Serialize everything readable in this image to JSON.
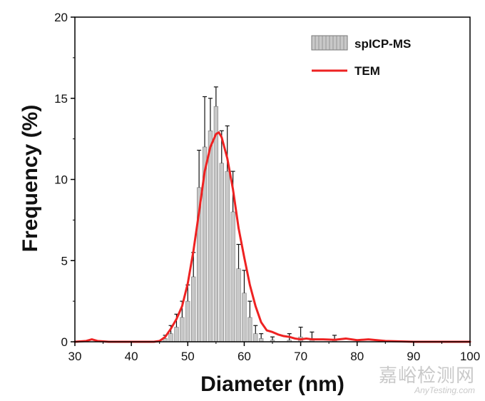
{
  "chart_data": {
    "type": "bar",
    "title": "",
    "xlabel": "Diameter (nm)",
    "ylabel": "Frequency (%)",
    "xlim": [
      30,
      100
    ],
    "ylim": [
      0,
      20
    ],
    "xticks": [
      30,
      40,
      50,
      60,
      70,
      80,
      90,
      100
    ],
    "yticks": [
      0,
      5,
      10,
      15,
      20
    ],
    "legend_position": "top-right",
    "series": [
      {
        "name": "spICP-MS",
        "type": "bar",
        "color": "#c8c8c8",
        "edge_color": "#777777",
        "x": [
          46,
          47,
          48,
          49,
          50,
          51,
          52,
          53,
          54,
          55,
          56,
          57,
          58,
          59,
          60,
          61,
          62,
          63,
          65,
          68,
          70,
          72,
          76
        ],
        "values": [
          0.2,
          0.5,
          0.9,
          1.5,
          2.5,
          4.0,
          9.5,
          12.0,
          13.0,
          14.5,
          11.0,
          10.5,
          8.0,
          4.5,
          3.0,
          1.5,
          0.5,
          0.2,
          0.1,
          0.1,
          0.3,
          0.2,
          0.1
        ],
        "errors": [
          0.2,
          0.5,
          0.8,
          1.0,
          1.0,
          1.5,
          2.3,
          3.1,
          2.0,
          1.2,
          2.0,
          2.8,
          2.5,
          1.5,
          1.4,
          1.0,
          0.5,
          0.3,
          0.2,
          0.4,
          0.6,
          0.4,
          0.3
        ]
      },
      {
        "name": "TEM",
        "type": "line",
        "color": "#ee2222",
        "x": [
          30,
          32,
          33,
          34,
          36,
          40,
          44,
          45,
          46,
          47,
          48,
          49,
          50,
          51,
          52,
          53,
          54,
          55,
          55.5,
          56,
          57,
          58,
          59,
          60,
          61,
          62,
          63,
          64,
          65,
          66,
          67,
          68,
          69,
          70,
          71,
          72,
          74,
          76,
          78,
          80,
          82,
          85,
          90,
          95,
          100
        ],
        "y": [
          0.0,
          0.05,
          0.15,
          0.05,
          0.0,
          0.0,
          0.0,
          0.05,
          0.3,
          0.8,
          1.4,
          2.2,
          3.6,
          5.6,
          8.0,
          10.5,
          12.0,
          12.8,
          12.9,
          12.6,
          11.3,
          9.4,
          7.0,
          5.2,
          3.5,
          2.2,
          1.2,
          0.7,
          0.6,
          0.45,
          0.35,
          0.3,
          0.2,
          0.15,
          0.2,
          0.15,
          0.15,
          0.12,
          0.2,
          0.1,
          0.15,
          0.05,
          0.0,
          0.0,
          0.0
        ]
      }
    ]
  },
  "watermark": {
    "chinese": "嘉峪检测网",
    "english": "AnyTesting.com"
  }
}
